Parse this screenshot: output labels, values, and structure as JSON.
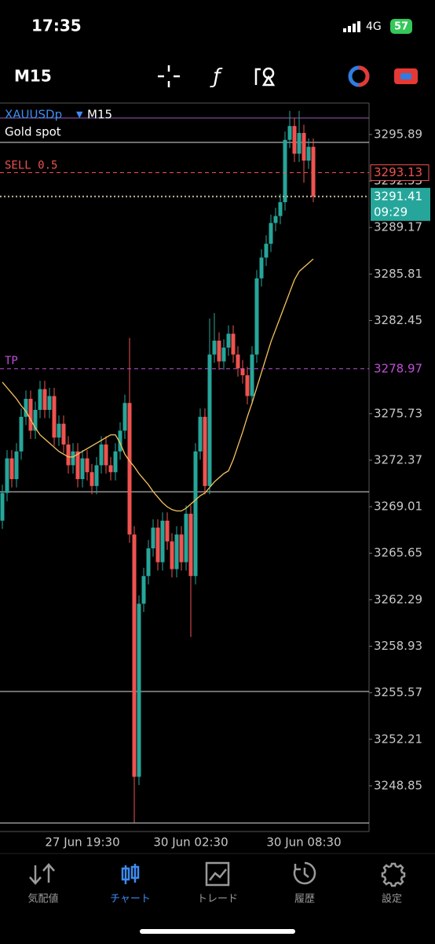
{
  "status_bar": {
    "time": "17:35",
    "network": "4G",
    "battery": 57
  },
  "toolbar": {
    "timeframe": "M15"
  },
  "chart_data": {
    "type": "candlestick",
    "symbol": "XAUUSDp",
    "timeframe": "M15",
    "description": "Gold spot",
    "categories": [
      null,
      null,
      null,
      null,
      null,
      null,
      null,
      null,
      null,
      null,
      null,
      null,
      null,
      null,
      null,
      null,
      null,
      "27 Jun 19:30",
      null,
      null,
      null,
      null,
      null,
      null,
      null,
      null,
      null,
      null,
      null,
      null,
      null,
      null,
      null,
      null,
      null,
      null,
      null,
      null,
      null,
      null,
      "30 Jun 02:30",
      null,
      null,
      null,
      null,
      null,
      null,
      null,
      null,
      null,
      null,
      null,
      null,
      null,
      null,
      null,
      null,
      null,
      null,
      null,
      null,
      null,
      null,
      null,
      "30 Jun 08:30",
      null,
      null
    ],
    "open": [
      3268.0,
      3270.0,
      3272.5,
      3271.0,
      3273.0,
      3275.5,
      3276.8,
      3274.5,
      3276.0,
      3277.5,
      3276.0,
      3277.0,
      3274.0,
      3275.0,
      3273.5,
      3272.0,
      3273.0,
      3271.0,
      3272.5,
      3271.5,
      3270.5,
      3272.0,
      3273.5,
      3272.0,
      3271.5,
      3273.0,
      3274.5,
      3276.5,
      3267.0,
      3249.5,
      3262.0,
      3264.0,
      3266.0,
      3267.5,
      3265.0,
      3268.0,
      3266.5,
      3264.5,
      3267.0,
      3265.0,
      3268.5,
      3264.0,
      3273.0,
      3275.5,
      3270.5,
      3280.0,
      3281.0,
      3279.5,
      3280.5,
      3281.5,
      3280.0,
      3279.0,
      3278.5,
      3277.0,
      3280.0,
      3285.5,
      3287.0,
      3288.0,
      3289.5,
      3290.0,
      3291.0,
      3295.5,
      3296.5,
      3294.5,
      3296.0,
      3294.0,
      3295.0
    ],
    "high": [
      3270.6,
      3273.1,
      3273.1,
      3273.6,
      3276.1,
      3277.4,
      3277.4,
      3276.6,
      3278.1,
      3278.1,
      3277.6,
      3277.6,
      3275.6,
      3275.6,
      3274.1,
      3273.6,
      3273.6,
      3273.1,
      3273.1,
      3272.1,
      3272.6,
      3274.1,
      3274.1,
      3272.6,
      3273.6,
      3275.1,
      3277.1,
      3281.2,
      3267.6,
      3262.6,
      3264.6,
      3266.6,
      3268.1,
      3268.1,
      3268.6,
      3268.6,
      3267.1,
      3267.6,
      3267.6,
      3269.1,
      3269.1,
      3273.6,
      3276.1,
      3276.1,
      3282.6,
      3283.0,
      3281.6,
      3281.1,
      3282.1,
      3282.1,
      3280.6,
      3279.6,
      3279.1,
      3280.6,
      3286.1,
      3287.6,
      3288.6,
      3290.1,
      3290.6,
      3291.6,
      3296.1,
      3297.6,
      3297.1,
      3297.6,
      3296.6,
      3295.6,
      3295.6
    ],
    "low": [
      3267.4,
      3269.4,
      3270.4,
      3270.4,
      3272.4,
      3274.9,
      3273.9,
      3273.9,
      3275.4,
      3275.4,
      3275.4,
      3273.4,
      3273.4,
      3272.9,
      3271.4,
      3271.4,
      3270.4,
      3270.4,
      3270.9,
      3269.9,
      3269.9,
      3271.4,
      3271.4,
      3270.9,
      3270.9,
      3272.4,
      3273.9,
      3266.4,
      3246.2,
      3248.9,
      3261.4,
      3263.4,
      3265.4,
      3264.4,
      3264.4,
      3265.9,
      3263.9,
      3263.9,
      3264.4,
      3264.4,
      3259.6,
      3263.4,
      3272.4,
      3269.9,
      3269.9,
      3279.4,
      3278.9,
      3278.9,
      3279.9,
      3279.4,
      3278.4,
      3277.9,
      3276.4,
      3276.4,
      3279.4,
      3284.9,
      3286.4,
      3287.4,
      3288.9,
      3289.4,
      3290.4,
      3294.9,
      3293.9,
      3293.9,
      3292.4,
      3293.4,
      3291.0
    ],
    "close": [
      3270.0,
      3272.5,
      3271.0,
      3273.0,
      3275.5,
      3276.8,
      3274.5,
      3276.0,
      3277.5,
      3276.0,
      3277.0,
      3274.0,
      3275.0,
      3273.5,
      3272.0,
      3273.0,
      3271.0,
      3272.5,
      3271.5,
      3270.5,
      3272.0,
      3273.5,
      3272.0,
      3271.5,
      3273.0,
      3274.5,
      3276.5,
      3267.0,
      3249.5,
      3262.0,
      3264.0,
      3266.0,
      3267.5,
      3265.0,
      3268.0,
      3266.5,
      3264.5,
      3267.0,
      3265.0,
      3268.5,
      3264.0,
      3273.0,
      3275.5,
      3270.5,
      3280.0,
      3281.0,
      3279.5,
      3280.5,
      3281.5,
      3280.0,
      3279.0,
      3278.5,
      3277.0,
      3280.0,
      3285.5,
      3287.0,
      3288.0,
      3289.5,
      3290.0,
      3291.0,
      3295.5,
      3296.5,
      3294.5,
      3296.0,
      3294.0,
      3295.0,
      3291.41
    ],
    "moving_average": [
      3278.0,
      3277.6,
      3277.2,
      3276.8,
      3276.3,
      3275.9,
      3275.3,
      3274.7,
      3274.2,
      3273.9,
      3273.6,
      3273.3,
      3273.0,
      3272.8,
      3272.6,
      3272.6,
      3272.8,
      3273.0,
      3273.2,
      3273.4,
      3273.6,
      3273.8,
      3274.0,
      3274.2,
      3274.2,
      3273.6,
      3272.8,
      3272.3,
      3271.9,
      3271.4,
      3271.0,
      3270.6,
      3270.1,
      3269.7,
      3269.3,
      3269.0,
      3268.8,
      3268.7,
      3268.7,
      3268.9,
      3269.2,
      3269.5,
      3269.8,
      3270.0,
      3270.4,
      3270.8,
      3271.1,
      3271.4,
      3271.6,
      3272.4,
      3273.4,
      3274.4,
      3275.5,
      3276.5,
      3277.6,
      3278.7,
      3279.8,
      3280.9,
      3281.8,
      3282.7,
      3283.6,
      3284.5,
      3285.4,
      3286.0,
      3286.3,
      3286.6,
      3286.9
    ],
    "up_color": "#26a69a",
    "down_color": "#ef5350",
    "ma_color": "#f5c45e",
    "ylim": [
      3245.55,
      3298.16
    ],
    "yticks": [
      3295.89,
      3292.53,
      3289.17,
      3285.81,
      3282.45,
      3275.73,
      3272.37,
      3269.01,
      3265.65,
      3262.29,
      3258.93,
      3255.57,
      3252.21,
      3248.85
    ],
    "levels": [
      3295.32,
      3270.09,
      3255.66,
      3246.17
    ],
    "sell": {
      "label": "SELL 0.5",
      "price": 3293.13
    },
    "tp": {
      "label": "TP",
      "price": 3278.97
    },
    "bid": 3291.41,
    "countdown": "09:29"
  },
  "nav": {
    "items": [
      "気配値",
      "チャート",
      "トレード",
      "履歴",
      "設定"
    ],
    "active": 1
  }
}
